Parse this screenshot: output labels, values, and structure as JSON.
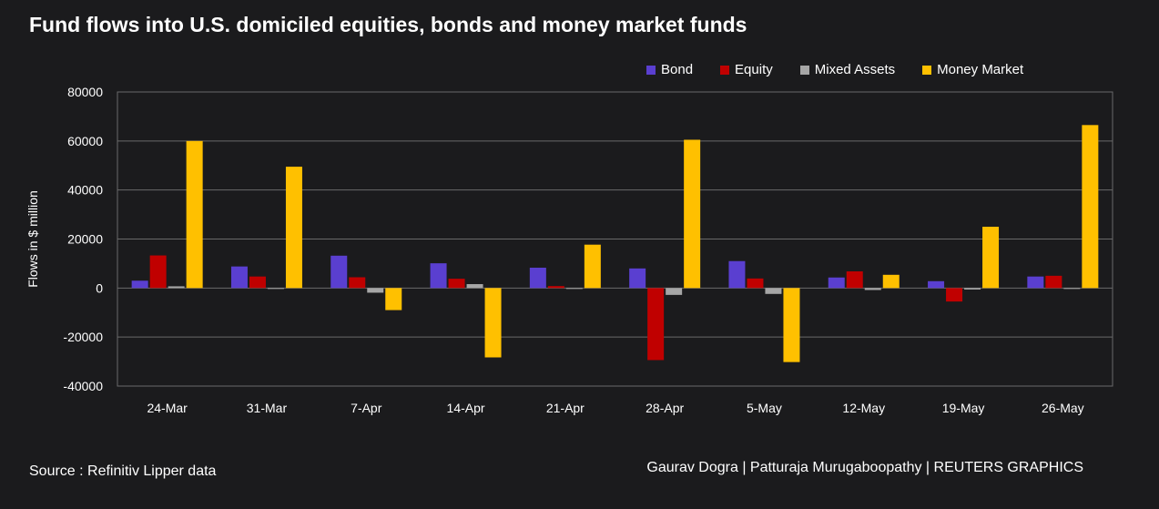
{
  "title": "Fund flows into U.S. domiciled equities, bonds and money market funds",
  "source": "Source : Refinitiv Lipper data",
  "credit": "Gaurav Dogra | Patturaja Murugaboopathy | REUTERS GRAPHICS",
  "colors": {
    "background": "#1b1b1d",
    "grid": "#6a6a6a",
    "text": "#ffffff"
  },
  "chart_data": {
    "type": "bar",
    "title": "Fund flows into U.S. domiciled equities, bonds and money market funds",
    "xlabel": "",
    "ylabel": "Flows in $ million",
    "ylim": [
      -40000,
      80000
    ],
    "yticks": [
      80000,
      60000,
      40000,
      20000,
      0,
      -20000,
      -40000
    ],
    "ytick_labels": [
      "80000",
      "60000",
      "40000",
      "20000",
      "0",
      "-20000",
      "-40000"
    ],
    "grid": true,
    "legend_position": "top-right",
    "categories": [
      "24-Mar",
      "31-Mar",
      "7-Apr",
      "14-Apr",
      "21-Apr",
      "28-Apr",
      "5-May",
      "12-May",
      "19-May",
      "26-May"
    ],
    "series": [
      {
        "name": "Bond",
        "color": "#5a3fd0",
        "values": [
          3000,
          8800,
          13200,
          10100,
          8300,
          8000,
          11000,
          4300,
          2800,
          4700
        ]
      },
      {
        "name": "Equity",
        "color": "#c00000",
        "values": [
          13300,
          4700,
          4400,
          3800,
          800,
          -29400,
          3900,
          6800,
          -5500,
          5000
        ]
      },
      {
        "name": "Mixed Assets",
        "color": "#a6a6a6",
        "values": [
          700,
          -200,
          -1900,
          1600,
          -200,
          -2800,
          -2400,
          -800,
          -600,
          -300
        ]
      },
      {
        "name": "Money Market",
        "color": "#ffc000",
        "values": [
          60000,
          49500,
          -9000,
          -28300,
          17700,
          60500,
          -30200,
          5400,
          25000,
          66500
        ]
      }
    ]
  }
}
